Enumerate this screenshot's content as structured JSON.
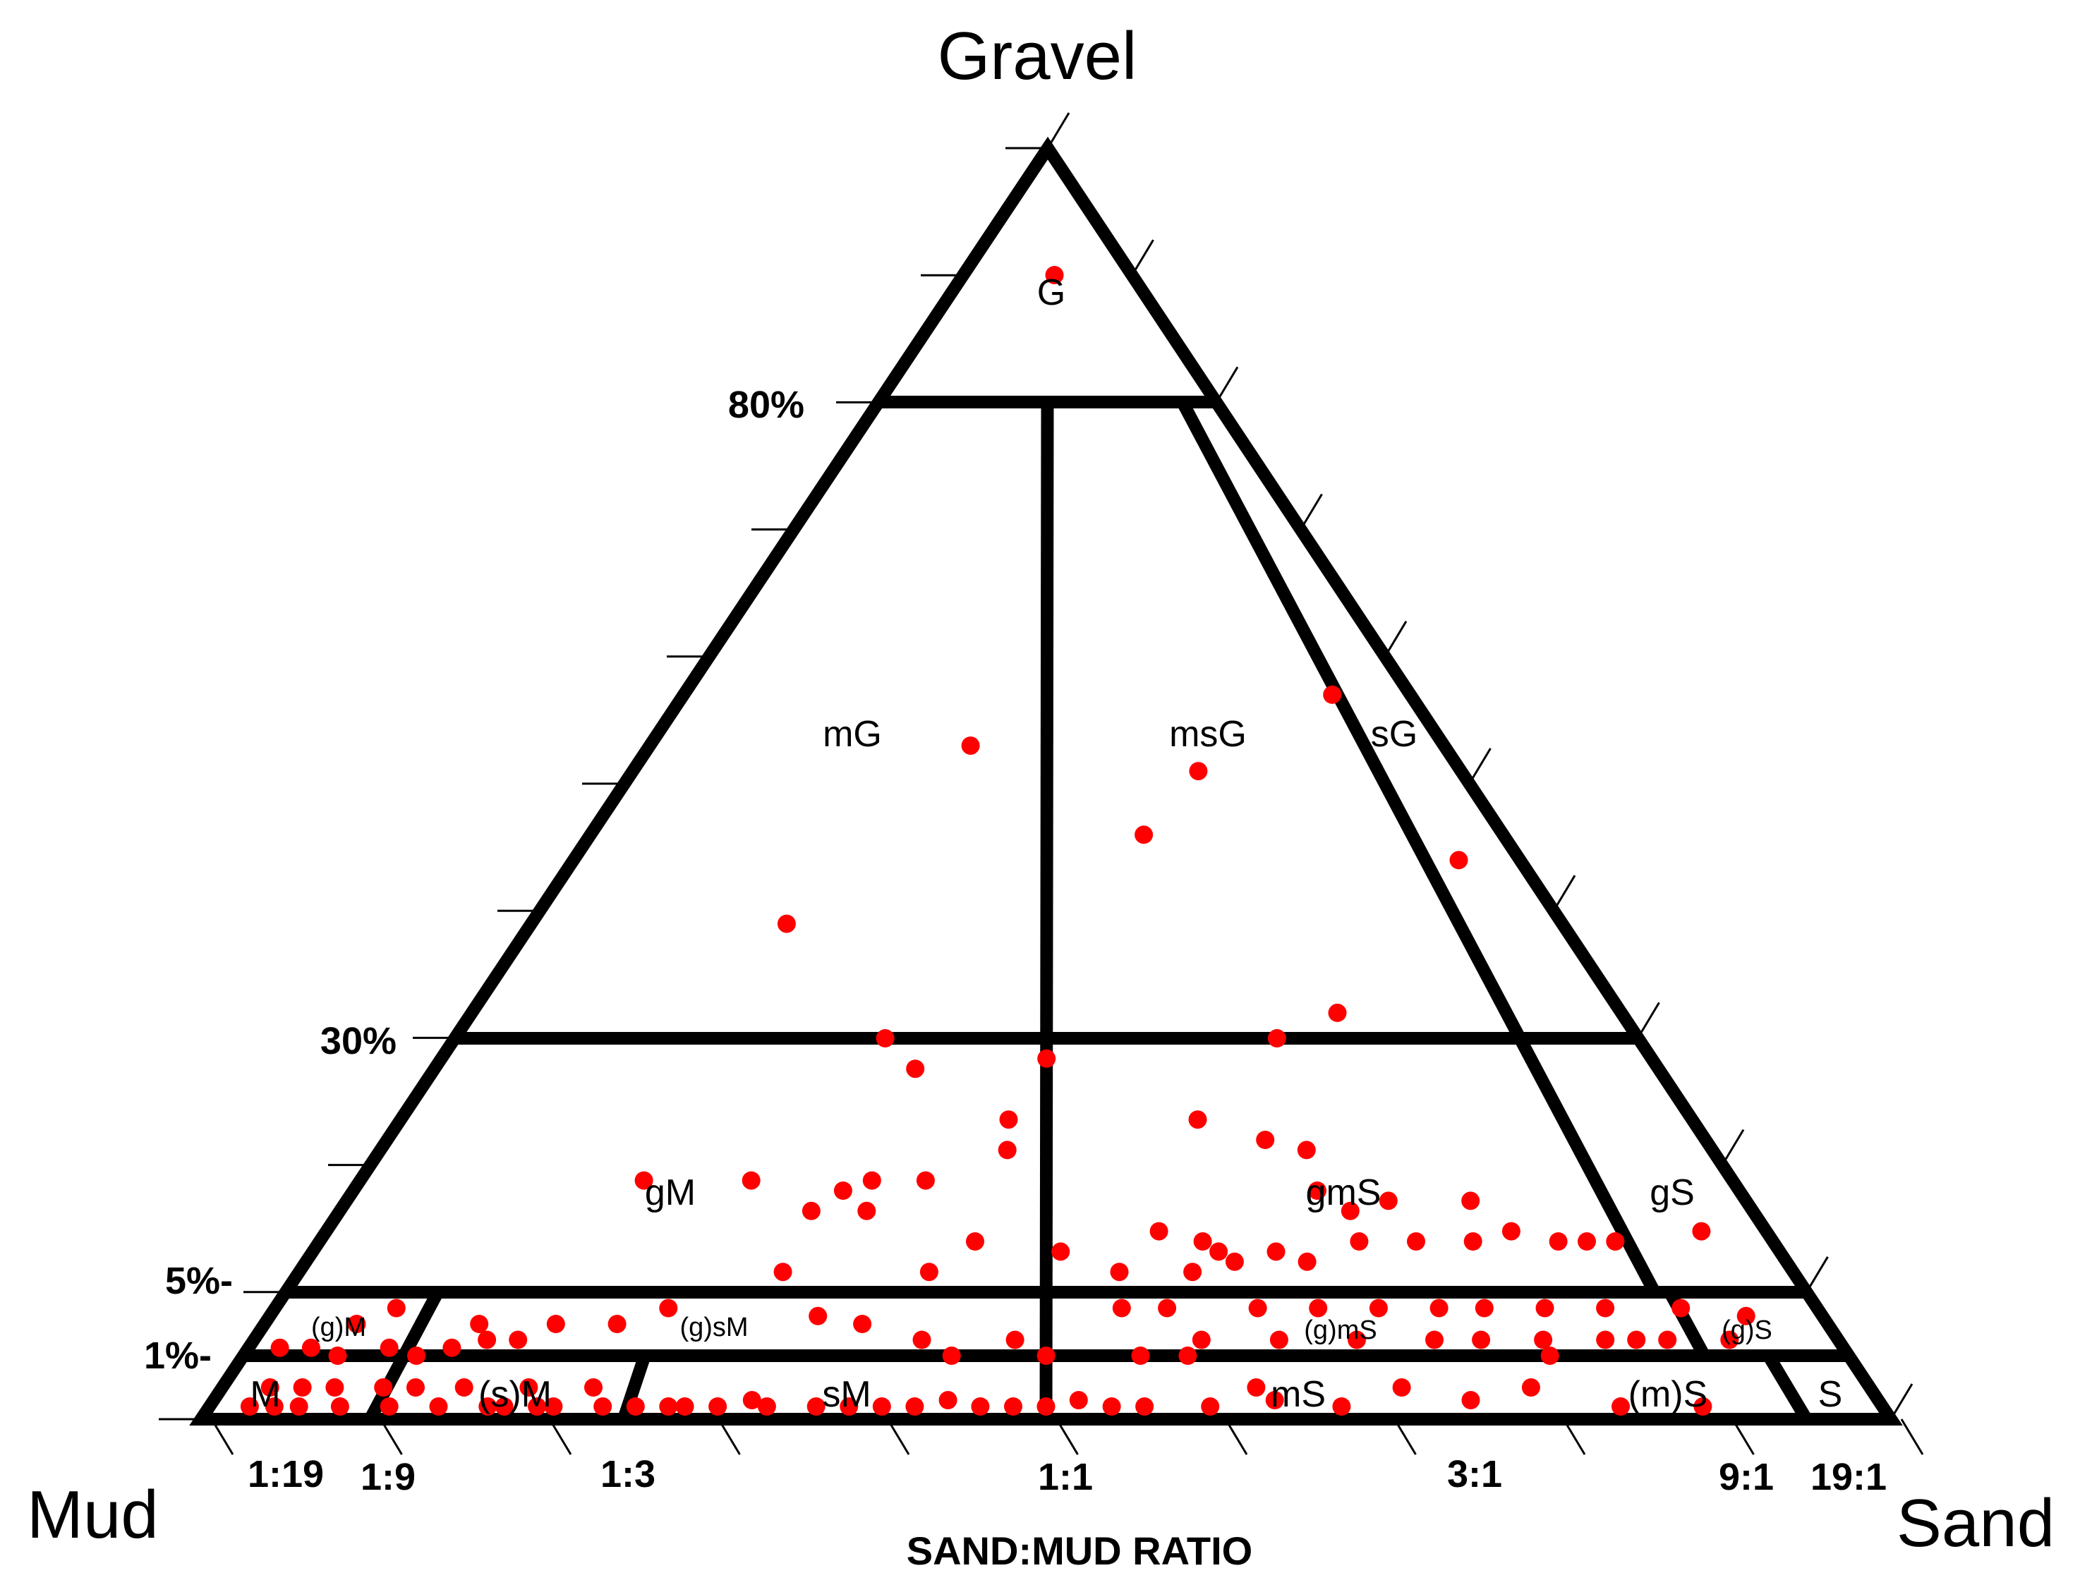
{
  "vertices": {
    "top": "Gravel",
    "left": "Mud",
    "right": "Sand"
  },
  "gravel_percent_labels": [
    "80%",
    "30%",
    "5%-",
    "1%-"
  ],
  "sand_mud_ratio_labels": [
    "1:19",
    "1:9",
    "1:3",
    "1:1",
    "3:1",
    "9:1",
    "19:1"
  ],
  "axis_title": "SAND:MUD RATIO",
  "regions": {
    "G": "G",
    "mG": "mG",
    "msG": "msG",
    "sG": "sG",
    "gM": "gM",
    "gmS": "gmS",
    "gS": "gS",
    "gM_trace": "(g)M",
    "gsM_trace": "(g)sM",
    "gmS_trace": "(g)mS",
    "gS_trace": "(g)S",
    "M": "M",
    "sM_trace": "(s)M",
    "sM": "sM",
    "mS": "mS",
    "mS_trace": "(m)S",
    "S": "S"
  },
  "marker_color": "#ff0000",
  "line_color": "#000000",
  "chart_data": {
    "type": "scatter",
    "coordinates": "ternary",
    "x_meaning": "sand fraction of the sand+mud portion (0 = Mud, 1 = Sand)",
    "y_meaning": "gravel percent",
    "gravel_boundaries": [
      80,
      30,
      5,
      1
    ],
    "ratio_boundaries": [
      0.05,
      0.1,
      0.25,
      0.5,
      0.75,
      0.9,
      0.95
    ],
    "points": [
      {
        "r": 0.55,
        "g": 90
      },
      {
        "r": 0.91,
        "g": 57
      },
      {
        "r": 0.95,
        "g": 44
      },
      {
        "r": 0.4,
        "g": 53
      },
      {
        "r": 0.69,
        "g": 51
      },
      {
        "r": 0.61,
        "g": 46
      },
      {
        "r": 0.24,
        "g": 39
      },
      {
        "r": 0.36,
        "g": 30
      },
      {
        "r": 0.5,
        "g": 28
      },
      {
        "r": 0.39,
        "g": 27
      },
      {
        "r": 0.76,
        "g": 32
      },
      {
        "r": 0.7,
        "g": 30
      },
      {
        "r": 0.47,
        "g": 22
      },
      {
        "r": 0.47,
        "g": 19
      },
      {
        "r": 0.62,
        "g": 22
      },
      {
        "r": 0.67,
        "g": 20
      },
      {
        "r": 0.7,
        "g": 19
      },
      {
        "r": 0.2,
        "g": 16
      },
      {
        "r": 0.28,
        "g": 16
      },
      {
        "r": 0.37,
        "g": 16
      },
      {
        "r": 0.41,
        "g": 16
      },
      {
        "r": 0.35,
        "g": 15
      },
      {
        "r": 0.33,
        "g": 13
      },
      {
        "r": 0.37,
        "g": 13
      },
      {
        "r": 0.45,
        "g": 10
      },
      {
        "r": 0.7,
        "g": 15
      },
      {
        "r": 0.72,
        "g": 13
      },
      {
        "r": 0.75,
        "g": 14
      },
      {
        "r": 0.81,
        "g": 14
      },
      {
        "r": 0.965,
        "g": 11
      },
      {
        "r": 0.51,
        "g": 9
      },
      {
        "r": 0.58,
        "g": 11
      },
      {
        "r": 0.61,
        "g": 10
      },
      {
        "r": 0.62,
        "g": 9
      },
      {
        "r": 0.66,
        "g": 9
      },
      {
        "r": 0.72,
        "g": 10
      },
      {
        "r": 0.76,
        "g": 10
      },
      {
        "r": 0.8,
        "g": 10
      },
      {
        "r": 0.83,
        "g": 11
      },
      {
        "r": 0.86,
        "g": 10
      },
      {
        "r": 0.88,
        "g": 10
      },
      {
        "r": 0.9,
        "g": 10
      },
      {
        "r": 0.63,
        "g": 8
      },
      {
        "r": 0.68,
        "g": 8
      },
      {
        "r": 0.32,
        "g": 7
      },
      {
        "r": 0.55,
        "g": 7
      },
      {
        "r": 0.6,
        "g": 7
      },
      {
        "r": 0.42,
        "g": 7
      },
      {
        "r": 0.25,
        "g": 4
      },
      {
        "r": 0.38,
        "g": 3
      },
      {
        "r": 0.35,
        "g": 3.5
      },
      {
        "r": 0.55,
        "g": 4
      },
      {
        "r": 0.58,
        "g": 4
      },
      {
        "r": 0.64,
        "g": 4
      },
      {
        "r": 0.68,
        "g": 4
      },
      {
        "r": 0.72,
        "g": 4
      },
      {
        "r": 0.76,
        "g": 4
      },
      {
        "r": 0.79,
        "g": 4
      },
      {
        "r": 0.83,
        "g": 4
      },
      {
        "r": 0.87,
        "g": 4
      },
      {
        "r": 0.92,
        "g": 4
      },
      {
        "r": 0.96,
        "g": 3.5
      },
      {
        "r": 0.07,
        "g": 4
      },
      {
        "r": 0.18,
        "g": 3
      },
      {
        "r": 0.22,
        "g": 3
      },
      {
        "r": 0.13,
        "g": 3
      },
      {
        "r": 0.05,
        "g": 3
      },
      {
        "r": 0.42,
        "g": 2
      },
      {
        "r": 0.48,
        "g": 2
      },
      {
        "r": 0.6,
        "g": 2
      },
      {
        "r": 0.65,
        "g": 2
      },
      {
        "r": 0.7,
        "g": 2
      },
      {
        "r": 0.75,
        "g": 2
      },
      {
        "r": 0.78,
        "g": 2
      },
      {
        "r": 0.82,
        "g": 2
      },
      {
        "r": 0.86,
        "g": 2
      },
      {
        "r": 0.88,
        "g": 2
      },
      {
        "r": 0.9,
        "g": 2
      },
      {
        "r": 0.94,
        "g": 2
      },
      {
        "r": 0.01,
        "g": 1.5
      },
      {
        "r": 0.03,
        "g": 1.5
      },
      {
        "r": 0.05,
        "g": 1
      },
      {
        "r": 0.08,
        "g": 1.5
      },
      {
        "r": 0.1,
        "g": 1
      },
      {
        "r": 0.12,
        "g": 1.5
      },
      {
        "r": 0.02,
        "g": 0.5
      },
      {
        "r": 0.04,
        "g": 0.5
      },
      {
        "r": 0.06,
        "g": 0.5
      },
      {
        "r": 0.09,
        "g": 0.5
      },
      {
        "r": 0.11,
        "g": 0.5
      },
      {
        "r": 0.14,
        "g": 0.5
      },
      {
        "r": 0.18,
        "g": 0.5
      },
      {
        "r": 0.22,
        "g": 0.5
      },
      {
        "r": 0.25,
        "g": 0.2
      },
      {
        "r": 0.27,
        "g": 0.2
      },
      {
        "r": 0.32,
        "g": 0.3
      },
      {
        "r": 0.36,
        "g": 0.2
      },
      {
        "r": 0.4,
        "g": 0.2
      },
      {
        "r": 0.44,
        "g": 0.3
      },
      {
        "r": 0.46,
        "g": 0.2
      },
      {
        "r": 0.52,
        "g": 0.3
      },
      {
        "r": 0.56,
        "g": 0.2
      },
      {
        "r": 0.6,
        "g": 0.2
      },
      {
        "r": 0.64,
        "g": 0.3
      },
      {
        "r": 0.68,
        "g": 0.2
      },
      {
        "r": 0.72,
        "g": 0.5
      },
      {
        "r": 0.76,
        "g": 0.3
      },
      {
        "r": 0.8,
        "g": 0.5
      },
      {
        "r": 0.85,
        "g": 0.2
      },
      {
        "r": 0.9,
        "g": 0.2
      },
      {
        "r": 0.17,
        "g": 0.2
      },
      {
        "r": 0.2,
        "g": 0.2
      },
      {
        "r": 0.3,
        "g": 0.2
      },
      {
        "r": 0.38,
        "g": 0.2
      },
      {
        "r": 0.42,
        "g": 0.2
      },
      {
        "r": 0.48,
        "g": 0.2
      },
      {
        "r": 0.54,
        "g": 0.2
      },
      {
        "r": 0.5,
        "g": 0.2
      },
      {
        "r": 0.015,
        "g": 0.2
      },
      {
        "r": 0.03,
        "g": 0.2
      },
      {
        "r": 0.045,
        "g": 0.2
      },
      {
        "r": 0.07,
        "g": 0.2
      },
      {
        "r": 0.1,
        "g": 0.2
      },
      {
        "r": 0.13,
        "g": 0.2
      },
      {
        "r": 0.16,
        "g": 0.2
      },
      {
        "r": 0.19,
        "g": 0.2
      },
      {
        "r": 0.23,
        "g": 0.2
      },
      {
        "r": 0.28,
        "g": 0.2
      },
      {
        "r": 0.33,
        "g": 0.2
      },
      {
        "r": 0.56,
        "g": 1
      },
      {
        "r": 0.59,
        "g": 1
      },
      {
        "r": 0.63,
        "g": 0.5
      },
      {
        "r": 0.82,
        "g": 1
      },
      {
        "r": 0.44,
        "g": 1
      },
      {
        "r": 0.5,
        "g": 1
      },
      {
        "r": 0.14,
        "g": 2
      },
      {
        "r": 0.16,
        "g": 2
      }
    ]
  }
}
